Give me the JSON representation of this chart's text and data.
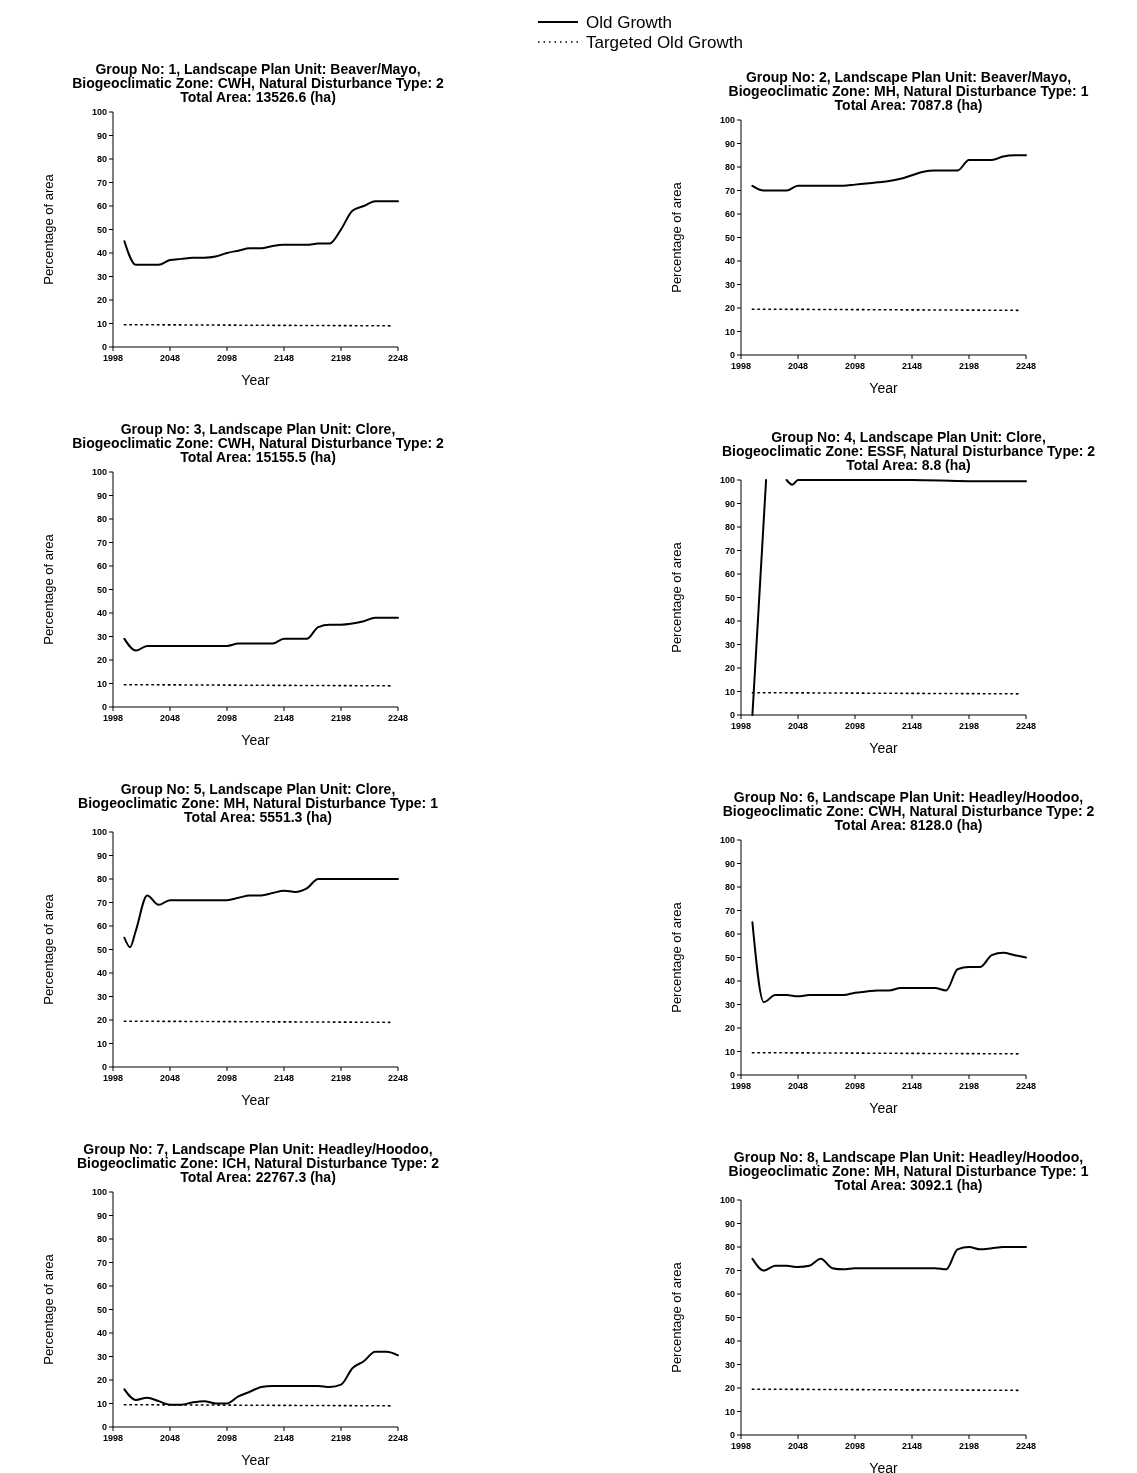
{
  "chart_data": [
    {
      "type": "line",
      "title": "Group No: 1, Landscape Plan Unit: Beaver/Mayo,\nBiogeoclimatic Zone: CWH, Natural Disturbance Type: 2\nTotal Area: 13526.6 (ha)",
      "xlabel": "Year",
      "ylabel": "Percentage of area",
      "xlim": [
        1998,
        2248
      ],
      "xticks": [
        1998,
        2048,
        2098,
        2148,
        2198,
        2248
      ],
      "ylim": [
        0,
        100
      ],
      "yticks": [
        0,
        10,
        20,
        30,
        40,
        50,
        60,
        70,
        80,
        90,
        100
      ],
      "legend": "top",
      "x": [
        2008,
        2018,
        2028,
        2038,
        2048,
        2058,
        2068,
        2078,
        2088,
        2098,
        2108,
        2118,
        2128,
        2138,
        2148,
        2158,
        2168,
        2178,
        2188,
        2198,
        2208,
        2218,
        2228,
        2238,
        2248
      ],
      "series": [
        {
          "name": "Old Growth",
          "color": "#000000",
          "line_style": "solid",
          "values": [
            45,
            35,
            35,
            35,
            37,
            37.5,
            38,
            38,
            38.5,
            40,
            41,
            42,
            42,
            43,
            43.5,
            43.5,
            43.5,
            44,
            44,
            50,
            58,
            60,
            62,
            62,
            62
          ]
        },
        {
          "name": "Targeted Old Growth",
          "color": "#000000",
          "line_style": "dotted",
          "x": [
            2008,
            2243
          ],
          "values": [
            9.5,
            9
          ]
        }
      ]
    },
    {
      "type": "line",
      "title": "Group No: 2, Landscape Plan Unit: Beaver/Mayo,\nBiogeoclimatic Zone: MH, Natural Disturbance Type: 1\nTotal Area: 7087.8 (ha)",
      "xlabel": "Year",
      "ylabel": "Percentage of area",
      "xlim": [
        1998,
        2248
      ],
      "xticks": [
        1998,
        2048,
        2098,
        2148,
        2198,
        2248
      ],
      "ylim": [
        0,
        100
      ],
      "yticks": [
        0,
        10,
        20,
        30,
        40,
        50,
        60,
        70,
        80,
        90,
        100
      ],
      "x": [
        2008,
        2018,
        2028,
        2038,
        2048,
        2058,
        2068,
        2078,
        2088,
        2098,
        2108,
        2118,
        2128,
        2138,
        2148,
        2158,
        2168,
        2178,
        2188,
        2198,
        2208,
        2218,
        2228,
        2238,
        2248
      ],
      "series": [
        {
          "color": "#000000",
          "line_style": "solid",
          "values": [
            72,
            70,
            70,
            70,
            72,
            72,
            72,
            72,
            72,
            72.5,
            73,
            73.5,
            74,
            75,
            76.5,
            78,
            78.5,
            78.5,
            78.5,
            83,
            83,
            83,
            84.5,
            85,
            85
          ]
        },
        {
          "color": "#000000",
          "line_style": "dotted",
          "x": [
            2008,
            2243
          ],
          "values": [
            19.5,
            19
          ]
        }
      ]
    },
    {
      "type": "line",
      "title": "Group No: 3, Landscape Plan Unit: Clore,\nBiogeoclimatic Zone: CWH, Natural Disturbance Type: 2\nTotal Area: 15155.5 (ha)",
      "xlabel": "Year",
      "ylabel": "Percentage of area",
      "xlim": [
        1998,
        2248
      ],
      "xticks": [
        1998,
        2048,
        2098,
        2148,
        2198,
        2248
      ],
      "ylim": [
        0,
        100
      ],
      "yticks": [
        0,
        10,
        20,
        30,
        40,
        50,
        60,
        70,
        80,
        90,
        100
      ],
      "x": [
        2008,
        2018,
        2028,
        2038,
        2048,
        2058,
        2068,
        2078,
        2088,
        2098,
        2108,
        2118,
        2128,
        2138,
        2148,
        2158,
        2168,
        2178,
        2188,
        2198,
        2208,
        2218,
        2228,
        2238,
        2248
      ],
      "series": [
        {
          "color": "#000000",
          "line_style": "solid",
          "values": [
            29,
            24,
            26,
            26,
            26,
            26,
            26,
            26,
            26,
            26,
            27,
            27,
            27,
            27,
            29,
            29,
            29,
            34,
            35,
            35,
            35.5,
            36.5,
            38,
            38,
            38
          ]
        },
        {
          "color": "#000000",
          "line_style": "dotted",
          "x": [
            2008,
            2243
          ],
          "values": [
            9.5,
            9
          ]
        }
      ]
    },
    {
      "type": "line",
      "title": "Group No: 4, Landscape Plan Unit: Clore,\nBiogeoclimatic Zone: ESSF, Natural Disturbance Type: 2\nTotal Area: 8.8 (ha)",
      "xlabel": "Year",
      "ylabel": "Percentage of area",
      "xlim": [
        1998,
        2248
      ],
      "xticks": [
        1998,
        2048,
        2098,
        2148,
        2198,
        2248
      ],
      "ylim": [
        0,
        100
      ],
      "yticks": [
        0,
        10,
        20,
        30,
        40,
        50,
        60,
        70,
        80,
        90,
        100
      ],
      "series": [
        {
          "color": "#000000",
          "line_style": "solid",
          "x": [
            2008,
            2020,
            2030,
            2038,
            2043,
            2048,
            2098,
            2148,
            2198,
            2248
          ],
          "values": [
            0,
            100,
            null,
            100,
            98,
            100,
            100,
            100,
            99.5,
            99.5
          ]
        },
        {
          "color": "#000000",
          "line_style": "dotted",
          "x": [
            2008,
            2243
          ],
          "values": [
            9.5,
            9
          ]
        }
      ]
    },
    {
      "type": "line",
      "title": "Group No: 5, Landscape Plan Unit: Clore,\nBiogeoclimatic Zone: MH, Natural Disturbance Type: 1\nTotal Area: 5551.3 (ha)",
      "xlabel": "Year",
      "ylabel": "Percentage of area",
      "xlim": [
        1998,
        2248
      ],
      "xticks": [
        1998,
        2048,
        2098,
        2148,
        2198,
        2248
      ],
      "ylim": [
        0,
        100
      ],
      "yticks": [
        0,
        10,
        20,
        30,
        40,
        50,
        60,
        70,
        80,
        90,
        100
      ],
      "x": [
        2008,
        2013,
        2018,
        2028,
        2038,
        2048,
        2058,
        2068,
        2078,
        2088,
        2098,
        2108,
        2118,
        2128,
        2138,
        2148,
        2158,
        2168,
        2178,
        2188,
        2198,
        2208,
        2218,
        2228,
        2238,
        2248
      ],
      "series": [
        {
          "color": "#000000",
          "line_style": "solid",
          "values": [
            55,
            51,
            58,
            73,
            69,
            71,
            71,
            71,
            71,
            71,
            71,
            72,
            73,
            73,
            74,
            75,
            74.5,
            76,
            80,
            80,
            80,
            80,
            80,
            80,
            80,
            80
          ]
        },
        {
          "color": "#000000",
          "line_style": "dotted",
          "x": [
            2008,
            2243
          ],
          "values": [
            19.5,
            19
          ]
        }
      ]
    },
    {
      "type": "line",
      "title": "Group No: 6, Landscape Plan Unit: Headley/Hoodoo,\nBiogeoclimatic Zone: CWH, Natural Disturbance Type: 2\nTotal Area: 8128.0 (ha)",
      "xlabel": "Year",
      "ylabel": "Percentage of area",
      "xlim": [
        1998,
        2248
      ],
      "xticks": [
        1998,
        2048,
        2098,
        2148,
        2198,
        2248
      ],
      "ylim": [
        0,
        100
      ],
      "yticks": [
        0,
        10,
        20,
        30,
        40,
        50,
        60,
        70,
        80,
        90,
        100
      ],
      "x": [
        2008,
        2018,
        2028,
        2038,
        2048,
        2058,
        2068,
        2078,
        2088,
        2098,
        2108,
        2118,
        2128,
        2138,
        2148,
        2158,
        2168,
        2178,
        2188,
        2198,
        2208,
        2218,
        2228,
        2238,
        2248
      ],
      "series": [
        {
          "color": "#000000",
          "line_style": "solid",
          "values": [
            65,
            31,
            34,
            34,
            33.5,
            34,
            34,
            34,
            34,
            35,
            35.5,
            36,
            36,
            37,
            37,
            37,
            37,
            36,
            45,
            46,
            46,
            51,
            52,
            51,
            50
          ]
        },
        {
          "color": "#000000",
          "line_style": "dotted",
          "x": [
            2008,
            2243
          ],
          "values": [
            9.5,
            9
          ]
        }
      ]
    },
    {
      "type": "line",
      "title": "Group No: 7, Landscape Plan Unit: Headley/Hoodoo,\nBiogeoclimatic Zone: ICH, Natural Disturbance Type: 2\nTotal Area: 22767.3 (ha)",
      "xlabel": "Year",
      "ylabel": "Percentage of area",
      "xlim": [
        1998,
        2248
      ],
      "xticks": [
        1998,
        2048,
        2098,
        2148,
        2198,
        2248
      ],
      "ylim": [
        0,
        100
      ],
      "yticks": [
        0,
        10,
        20,
        30,
        40,
        50,
        60,
        70,
        80,
        90,
        100
      ],
      "x": [
        2008,
        2018,
        2028,
        2038,
        2048,
        2058,
        2068,
        2078,
        2088,
        2098,
        2108,
        2118,
        2128,
        2138,
        2148,
        2158,
        2168,
        2178,
        2188,
        2198,
        2208,
        2218,
        2228,
        2238,
        2248
      ],
      "series": [
        {
          "color": "#000000",
          "line_style": "solid",
          "values": [
            16,
            11.5,
            12.5,
            11,
            9.5,
            9.5,
            10.5,
            11,
            10,
            10,
            13,
            15,
            17,
            17.5,
            17.5,
            17.5,
            17.5,
            17.5,
            17,
            18,
            25,
            28,
            32,
            32,
            30.5
          ]
        },
        {
          "color": "#000000",
          "line_style": "dotted",
          "x": [
            2008,
            2243
          ],
          "values": [
            9.5,
            9
          ]
        }
      ]
    },
    {
      "type": "line",
      "title": "Group No: 8, Landscape Plan Unit: Headley/Hoodoo,\nBiogeoclimatic Zone: MH, Natural Disturbance Type: 1\nTotal Area: 3092.1 (ha)",
      "xlabel": "Year",
      "ylabel": "Percentage of area",
      "xlim": [
        1998,
        2248
      ],
      "xticks": [
        1998,
        2048,
        2098,
        2148,
        2198,
        2248
      ],
      "ylim": [
        0,
        100
      ],
      "yticks": [
        0,
        10,
        20,
        30,
        40,
        50,
        60,
        70,
        80,
        90,
        100
      ],
      "x": [
        2008,
        2018,
        2028,
        2038,
        2048,
        2058,
        2068,
        2078,
        2088,
        2098,
        2108,
        2118,
        2128,
        2138,
        2148,
        2158,
        2168,
        2178,
        2188,
        2198,
        2208,
        2218,
        2228,
        2238,
        2248
      ],
      "series": [
        {
          "color": "#000000",
          "line_style": "solid",
          "values": [
            75,
            70,
            72,
            72,
            71.5,
            72,
            75,
            71,
            70.5,
            71,
            71,
            71,
            71,
            71,
            71,
            71,
            71,
            70.5,
            79,
            80,
            79,
            79.5,
            80,
            80,
            80
          ]
        },
        {
          "color": "#000000",
          "line_style": "dotted",
          "x": [
            2008,
            2243
          ],
          "values": [
            19.5,
            19
          ]
        }
      ]
    }
  ]
}
